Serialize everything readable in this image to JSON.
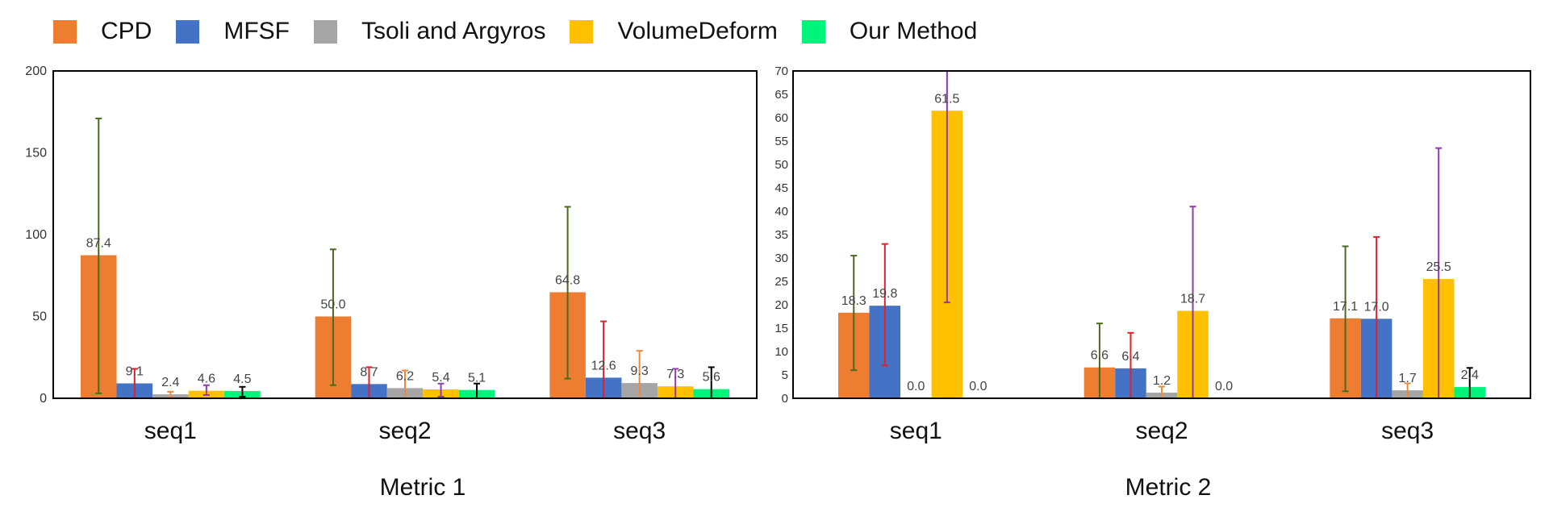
{
  "legend": [
    {
      "name": "CPD",
      "color": "#ED7D31"
    },
    {
      "name": "MFSF",
      "color": "#4472C4"
    },
    {
      "name": "Tsoli and Argyros",
      "color": "#A5A5A5"
    },
    {
      "name": "VolumeDeform",
      "color": "#FFC000"
    },
    {
      "name": "Our Method",
      "color": "#00F47C"
    }
  ],
  "chart_data": [
    {
      "type": "bar",
      "title": "",
      "xlabel": "Metric 1",
      "ylabel": "",
      "categories": [
        "seq1",
        "seq2",
        "seq3"
      ],
      "ylim": [
        0,
        200
      ],
      "yticks": [
        0,
        50,
        100,
        150,
        200
      ],
      "series": [
        {
          "name": "CPD",
          "color": "#ED7D31",
          "errorbar_color": "#4A6B1E",
          "values": [
            87.4,
            50.0,
            64.8
          ],
          "labels": [
            "87.4",
            "50.0",
            "64.8"
          ],
          "error_low": [
            3,
            8,
            12
          ],
          "error_high": [
            171,
            91,
            117
          ]
        },
        {
          "name": "MFSF",
          "color": "#4472C4",
          "errorbar_color": "#E0202A",
          "values": [
            9.1,
            8.7,
            12.6
          ],
          "labels": [
            "9.1",
            "8.7",
            "12.6"
          ],
          "error_low": [
            0,
            0,
            0
          ],
          "error_high": [
            18,
            19,
            47
          ]
        },
        {
          "name": "Tsoli and Argyros",
          "color": "#A5A5A5",
          "errorbar_color": "#F0883A",
          "values": [
            2.4,
            6.2,
            9.3
          ],
          "labels": [
            "2.4",
            "6.2",
            "9.3"
          ],
          "error_low": [
            0.5,
            0,
            0
          ],
          "error_high": [
            4,
            17,
            29
          ]
        },
        {
          "name": "VolumeDeform",
          "color": "#FFC000",
          "errorbar_color": "#8E3BB0",
          "values": [
            4.6,
            5.4,
            7.3
          ],
          "labels": [
            "4.6",
            "5.4",
            "7.3"
          ],
          "error_low": [
            2,
            1,
            0
          ],
          "error_high": [
            8,
            9,
            18
          ]
        },
        {
          "name": "Our Method",
          "color": "#00F47C",
          "errorbar_color": "#000000",
          "values": [
            4.5,
            5.1,
            5.6
          ],
          "labels": [
            "4.5",
            "5.1",
            "5.6"
          ],
          "error_low": [
            1,
            0,
            0
          ],
          "error_high": [
            7,
            9,
            19
          ]
        }
      ]
    },
    {
      "type": "bar",
      "title": "",
      "xlabel": "Metric 2",
      "ylabel": "",
      "categories": [
        "seq1",
        "seq2",
        "seq3"
      ],
      "ylim": [
        0,
        70
      ],
      "yticks": [
        0,
        5,
        10,
        15,
        20,
        25,
        30,
        35,
        40,
        45,
        50,
        55,
        60,
        65,
        70
      ],
      "series": [
        {
          "name": "CPD",
          "color": "#ED7D31",
          "errorbar_color": "#4A6B1E",
          "values": [
            18.3,
            6.6,
            17.1
          ],
          "labels": [
            "18.3",
            "6.6",
            "17.1"
          ],
          "error_low": [
            6,
            0,
            1.5
          ],
          "error_high": [
            30.5,
            16,
            32.5
          ]
        },
        {
          "name": "MFSF",
          "color": "#4472C4",
          "errorbar_color": "#E0202A",
          "values": [
            19.8,
            6.4,
            17.0
          ],
          "labels": [
            "19.8",
            "6.4",
            "17.0"
          ],
          "error_low": [
            7,
            0,
            0
          ],
          "error_high": [
            33,
            14,
            34.5
          ]
        },
        {
          "name": "Tsoli and Argyros",
          "color": "#A5A5A5",
          "errorbar_color": "#F0883A",
          "values": [
            0.0,
            1.2,
            1.7
          ],
          "labels": [
            "0.0",
            "1.2",
            "1.7"
          ],
          "error_low": [
            0,
            0,
            0
          ],
          "error_high": [
            0,
            2.5,
            3.2
          ]
        },
        {
          "name": "VolumeDeform",
          "color": "#FFC000",
          "errorbar_color": "#8E3BB0",
          "values": [
            61.5,
            18.7,
            25.5
          ],
          "labels": [
            "61.5",
            "18.7",
            "25.5"
          ],
          "error_low": [
            20.5,
            0,
            0
          ],
          "error_high": [
            70,
            41,
            53.5
          ]
        },
        {
          "name": "Our Method",
          "color": "#00F47C",
          "errorbar_color": "#000000",
          "values": [
            0.0,
            0.0,
            2.4
          ],
          "labels": [
            "0.0",
            "0.0",
            "2.4"
          ],
          "error_low": [
            0,
            0,
            0
          ],
          "error_high": [
            0,
            0,
            6.5
          ]
        }
      ]
    }
  ]
}
